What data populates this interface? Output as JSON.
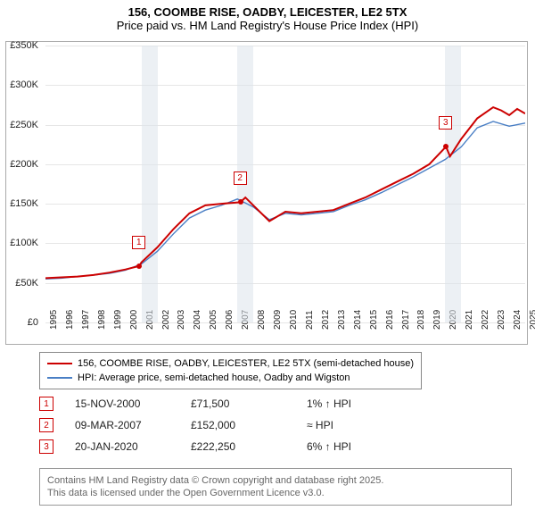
{
  "title_line1": "156, COOMBE RISE, OADBY, LEICESTER, LE2 5TX",
  "title_line2": "Price paid vs. HM Land Registry's House Price Index (HPI)",
  "chart": {
    "type": "line",
    "ylim": [
      0,
      350000
    ],
    "ytick_step": 50000,
    "yticks": [
      "£0",
      "£50K",
      "£100K",
      "£150K",
      "£200K",
      "£250K",
      "£300K",
      "£350K"
    ],
    "xlim": [
      1995,
      2025
    ],
    "xticks": [
      1995,
      1996,
      1997,
      1998,
      1999,
      2000,
      2001,
      2002,
      2003,
      2004,
      2005,
      2006,
      2007,
      2008,
      2009,
      2010,
      2011,
      2012,
      2013,
      2014,
      2015,
      2016,
      2017,
      2018,
      2019,
      2020,
      2021,
      2022,
      2023,
      2024,
      2025
    ],
    "background_color": "#ffffff",
    "grid_color": "#e6e6e6",
    "shade_color": "#dce3eb",
    "shade_opacity": 0.55,
    "series": {
      "price_paid": {
        "color": "#cc0000",
        "width": 2,
        "label": "156, COOMBE RISE, OADBY, LEICESTER, LE2 5TX (semi-detached house)",
        "data": [
          [
            1995,
            56000
          ],
          [
            1996,
            57000
          ],
          [
            1997,
            58000
          ],
          [
            1998,
            60000
          ],
          [
            1999,
            63000
          ],
          [
            2000,
            67000
          ],
          [
            2000.87,
            71500
          ],
          [
            2001,
            76000
          ],
          [
            2002,
            95000
          ],
          [
            2003,
            118000
          ],
          [
            2004,
            138000
          ],
          [
            2005,
            148000
          ],
          [
            2006,
            150000
          ],
          [
            2007.19,
            152000
          ],
          [
            2007.5,
            158000
          ],
          [
            2008,
            148000
          ],
          [
            2009,
            128000
          ],
          [
            2010,
            140000
          ],
          [
            2011,
            138000
          ],
          [
            2012,
            140000
          ],
          [
            2013,
            142000
          ],
          [
            2014,
            150000
          ],
          [
            2015,
            158000
          ],
          [
            2016,
            168000
          ],
          [
            2017,
            178000
          ],
          [
            2018,
            188000
          ],
          [
            2019,
            200000
          ],
          [
            2020.05,
            222250
          ],
          [
            2020.3,
            210000
          ],
          [
            2021,
            232000
          ],
          [
            2022,
            258000
          ],
          [
            2023,
            272000
          ],
          [
            2023.5,
            268000
          ],
          [
            2024,
            262000
          ],
          [
            2024.5,
            270000
          ],
          [
            2025,
            264000
          ]
        ]
      },
      "hpi": {
        "color": "#4a7fc5",
        "width": 1.4,
        "label": "HPI: Average price, semi-detached house, Oadby and Wigston",
        "data": [
          [
            1995,
            55000
          ],
          [
            1996,
            56000
          ],
          [
            1997,
            58000
          ],
          [
            1998,
            60000
          ],
          [
            1999,
            62000
          ],
          [
            2000,
            66000
          ],
          [
            2001,
            74000
          ],
          [
            2002,
            90000
          ],
          [
            2003,
            112000
          ],
          [
            2004,
            132000
          ],
          [
            2005,
            142000
          ],
          [
            2006,
            148000
          ],
          [
            2007,
            156000
          ],
          [
            2008,
            146000
          ],
          [
            2009,
            130000
          ],
          [
            2010,
            138000
          ],
          [
            2011,
            136000
          ],
          [
            2012,
            138000
          ],
          [
            2013,
            140000
          ],
          [
            2014,
            148000
          ],
          [
            2015,
            155000
          ],
          [
            2016,
            164000
          ],
          [
            2017,
            174000
          ],
          [
            2018,
            184000
          ],
          [
            2019,
            195000
          ],
          [
            2020,
            206000
          ],
          [
            2021,
            222000
          ],
          [
            2022,
            246000
          ],
          [
            2023,
            254000
          ],
          [
            2024,
            248000
          ],
          [
            2025,
            252000
          ]
        ]
      }
    },
    "shaded_years": [
      [
        2001,
        2002
      ],
      [
        2007,
        2008
      ],
      [
        2020,
        2021
      ]
    ],
    "sale_markers": [
      {
        "n": "1",
        "year": 2000.87,
        "price": 71500
      },
      {
        "n": "2",
        "year": 2007.19,
        "price": 152000
      },
      {
        "n": "3",
        "year": 2020.05,
        "price": 222250
      }
    ]
  },
  "legend": [
    {
      "color": "#cc0000",
      "width": 2,
      "label": "156, COOMBE RISE, OADBY, LEICESTER, LE2 5TX (semi-detached house)"
    },
    {
      "color": "#4a7fc5",
      "width": 1.4,
      "label": "HPI: Average price, semi-detached house, Oadby and Wigston"
    }
  ],
  "sales_table": [
    {
      "n": "1",
      "date": "15-NOV-2000",
      "price": "£71,500",
      "hpi": "1% ↑ HPI"
    },
    {
      "n": "2",
      "date": "09-MAR-2007",
      "price": "£152,000",
      "hpi": "≈ HPI"
    },
    {
      "n": "3",
      "date": "20-JAN-2020",
      "price": "£222,250",
      "hpi": "6% ↑ HPI"
    }
  ],
  "footer_line1": "Contains HM Land Registry data © Crown copyright and database right 2025.",
  "footer_line2": "This data is licensed under the Open Government Licence v3.0."
}
